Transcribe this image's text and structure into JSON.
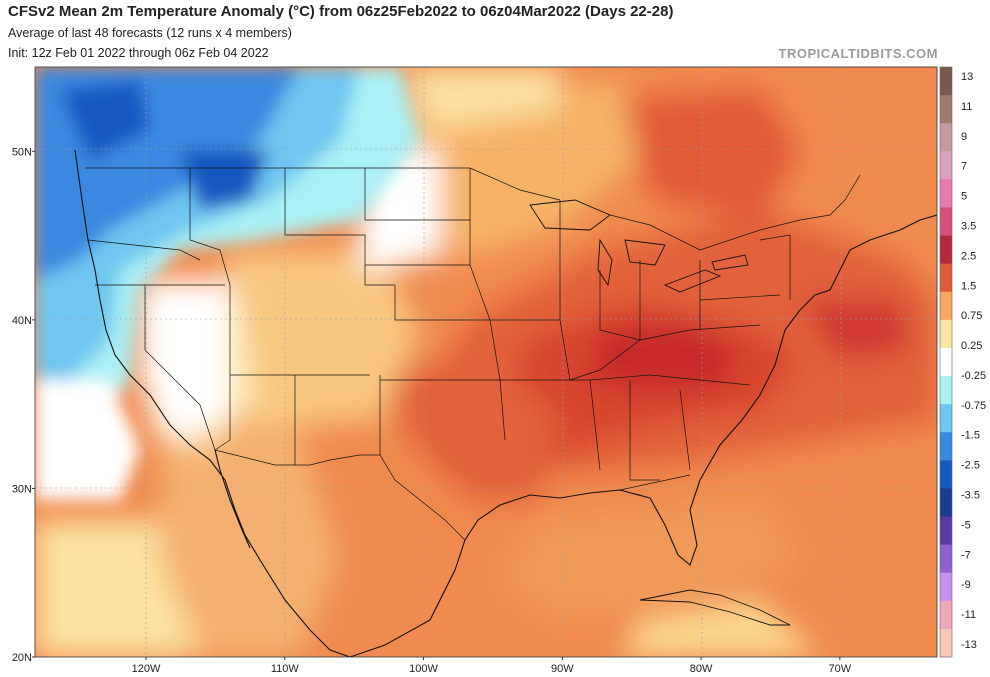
{
  "header": {
    "title": "CFSv2 Mean 2m Temperature Anomaly (°C) from 06z25Feb2022 to 06z04Mar2022 (Days 22-28)",
    "subtitle": "Average of last 48 forecasts (12 runs x 4 members)",
    "init": "Init: 12z Feb 01 2022 through 06z Feb 04 2022",
    "brand": "TROPICALTIDBITS.COM"
  },
  "map": {
    "lon_range": [
      -128,
      -63
    ],
    "lat_range": [
      20,
      55
    ],
    "lat_labels": [
      {
        "lat": 50,
        "text": "50N"
      },
      {
        "lat": 40,
        "text": "40N"
      },
      {
        "lat": 30,
        "text": "30N"
      },
      {
        "lat": 20,
        "text": "20N"
      }
    ],
    "lon_labels": [
      {
        "lon": -120,
        "text": "120W"
      },
      {
        "lon": -110,
        "text": "110W"
      },
      {
        "lon": -100,
        "text": "100W"
      },
      {
        "lon": -90,
        "text": "90W"
      },
      {
        "lon": -80,
        "text": "80W"
      },
      {
        "lon": -70,
        "text": "70W"
      }
    ]
  },
  "colorbar": {
    "labels": [
      "13",
      "11",
      "9",
      "7",
      "5",
      "3.5",
      "2.5",
      "1.5",
      "0.75",
      "0.25",
      "-0.25",
      "-0.75",
      "-1.5",
      "-2.5",
      "-3.5",
      "-5",
      "-7",
      "-9",
      "-11",
      "-13"
    ],
    "colors": [
      "#7a5a4a",
      "#a07a6a",
      "#c49aa0",
      "#dca0c0",
      "#e67ab0",
      "#d8507a",
      "#b8283c",
      "#e05a38",
      "#f4a860",
      "#fbe6a0",
      "#ffffff",
      "#aaf2f4",
      "#70c6f0",
      "#3a88e0",
      "#1858c0",
      "#1a3a90",
      "#5a3aa0",
      "#9060d0",
      "#c890f0",
      "#f0a8b8",
      "#f8c8b8"
    ]
  }
}
